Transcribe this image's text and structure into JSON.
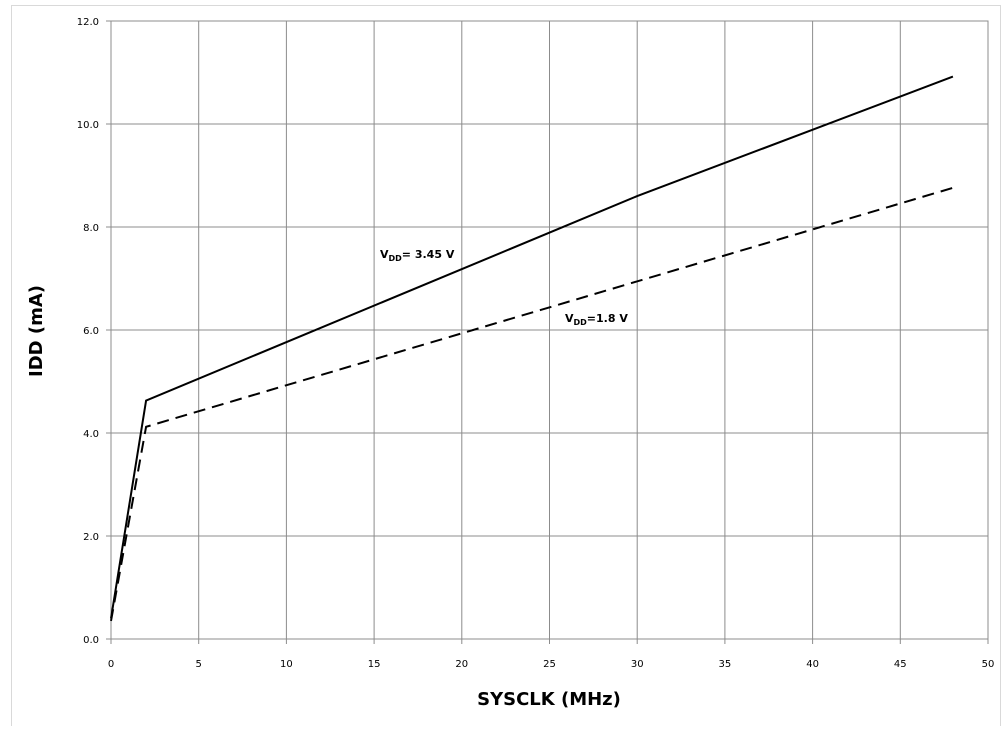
{
  "chart_data": {
    "type": "line",
    "xlabel": "SYSCLK (MHz)",
    "ylabel": "IDD (mA)",
    "xlim": [
      0,
      50
    ],
    "ylim": [
      0,
      12
    ],
    "x_ticks": [
      "0",
      "5",
      "10",
      "15",
      "20",
      "25",
      "30",
      "35",
      "40",
      "45",
      "50"
    ],
    "y_ticks": [
      "0.0",
      "2.0",
      "4.0",
      "6.0",
      "8.0",
      "10.0",
      "12.0"
    ],
    "grid": true,
    "legend": "none",
    "series": [
      {
        "name": "VDD= 3.45 V",
        "style": "solid",
        "color": "#000000",
        "x": [
          0,
          2,
          30,
          48
        ],
        "y": [
          0.4,
          4.63,
          8.6,
          10.92
        ]
      },
      {
        "name": "VDD=1.8 V",
        "style": "dashed",
        "color": "#000000",
        "x": [
          0,
          2,
          48
        ],
        "y": [
          0.35,
          4.12,
          8.76
        ]
      }
    ],
    "annotations": [
      {
        "main": "V",
        "sub": "DD",
        "tail": "= 3.45 V"
      },
      {
        "main": "V",
        "sub": "DD",
        "tail": "=1.8 V"
      }
    ]
  }
}
